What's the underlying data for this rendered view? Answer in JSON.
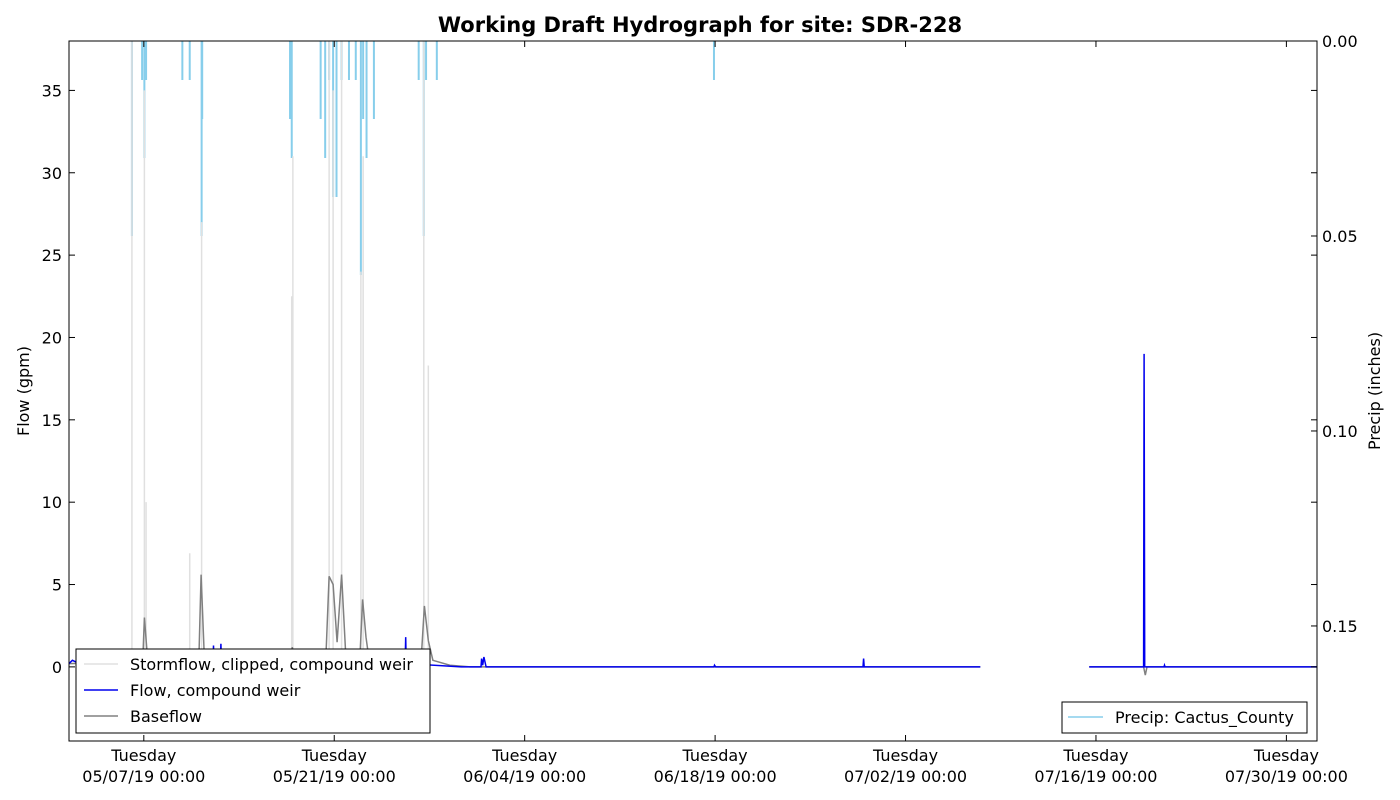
{
  "chart_data": {
    "type": "line",
    "title": "Working Draft Hydrograph for site: SDR-228",
    "ylabel": "Flow (gpm)",
    "y2label": "Precip (inches)",
    "xlabel": "",
    "ylim": [
      -4.5,
      38
    ],
    "y2lim": [
      0.0,
      0.1795
    ],
    "y2_inverted": true,
    "xlim": [
      "2019-05-01T12:00",
      "2019-08-01T06:00"
    ],
    "yticks": [
      "0",
      "5",
      "10",
      "15",
      "20",
      "25",
      "30",
      "35"
    ],
    "y2ticks": [
      "0.00",
      "0.05",
      "0.10",
      "0.15"
    ],
    "xticks": [
      {
        "date": "2019-05-07",
        "label_day": "Tuesday",
        "label_date": "05/07/19 00:00"
      },
      {
        "date": "2019-05-21",
        "label_day": "Tuesday",
        "label_date": "05/21/19 00:00"
      },
      {
        "date": "2019-06-04",
        "label_day": "Tuesday",
        "label_date": "06/04/19 00:00"
      },
      {
        "date": "2019-06-18",
        "label_day": "Tuesday",
        "label_date": "06/18/19 00:00"
      },
      {
        "date": "2019-07-02",
        "label_day": "Tuesday",
        "label_date": "07/02/19 00:00"
      },
      {
        "date": "2019-07-16",
        "label_day": "Tuesday",
        "label_date": "07/16/19 00:00"
      },
      {
        "date": "2019-07-30",
        "label_day": "Tuesday",
        "label_date": "07/30/19 00:00"
      }
    ],
    "legend_left": {
      "placement": "bottom-left",
      "entries": [
        {
          "label": "Stormflow, clipped, compound weir",
          "color": "#e0e0e0"
        },
        {
          "label": "Flow, compound weir",
          "color": "#0000ee"
        },
        {
          "label": "Baseflow",
          "color": "#808080"
        }
      ]
    },
    "legend_right": {
      "placement": "bottom-right",
      "entries": [
        {
          "label": "Precip: Cactus_County",
          "color": "#87ceeb"
        }
      ]
    },
    "series": [
      {
        "name": "Precip: Cactus_County",
        "axis": "right",
        "kind": "bars",
        "color": "#87ceeb",
        "points": [
          {
            "x": "2019-05-06T03:00",
            "y": 0.05
          },
          {
            "x": "2019-05-06T21:00",
            "y": 0.01
          },
          {
            "x": "2019-05-07T01:00",
            "y": 0.03
          },
          {
            "x": "2019-05-07T04:00",
            "y": 0.01
          },
          {
            "x": "2019-05-09T20:00",
            "y": 0.01
          },
          {
            "x": "2019-05-10T09:00",
            "y": 0.01
          },
          {
            "x": "2019-05-11T06:00",
            "y": 0.05
          },
          {
            "x": "2019-05-11T07:00",
            "y": 0.02
          },
          {
            "x": "2019-05-17T18:00",
            "y": 0.02
          },
          {
            "x": "2019-05-17T21:00",
            "y": 0.03
          },
          {
            "x": "2019-05-20T00:00",
            "y": 0.02
          },
          {
            "x": "2019-05-20T08:00",
            "y": 0.03
          },
          {
            "x": "2019-05-20T15:00",
            "y": 0.01
          },
          {
            "x": "2019-05-20T22:00",
            "y": 0.04
          },
          {
            "x": "2019-05-21T04:00",
            "y": 0.04
          },
          {
            "x": "2019-05-21T13:00",
            "y": 0.01
          },
          {
            "x": "2019-05-22T02:00",
            "y": 0.01
          },
          {
            "x": "2019-05-22T14:00",
            "y": 0.01
          },
          {
            "x": "2019-05-22T23:00",
            "y": 0.06
          },
          {
            "x": "2019-05-23T03:00",
            "y": 0.02
          },
          {
            "x": "2019-05-23T09:00",
            "y": 0.03
          },
          {
            "x": "2019-05-23T22:00",
            "y": 0.02
          },
          {
            "x": "2019-05-27T05:00",
            "y": 0.01
          },
          {
            "x": "2019-05-27T14:00",
            "y": 0.05
          },
          {
            "x": "2019-05-27T18:00",
            "y": 0.01
          },
          {
            "x": "2019-05-28T13:00",
            "y": 0.01
          },
          {
            "x": "2019-06-17T22:00",
            "y": 0.01
          }
        ]
      },
      {
        "name": "Stormflow, clipped, compound weir",
        "axis": "left",
        "kind": "spikes",
        "color": "#e0e0e0",
        "points": [
          {
            "x": "2019-05-06T03:00",
            "y": 38
          },
          {
            "x": "2019-05-07T01:00",
            "y": 35
          },
          {
            "x": "2019-05-07T04:00",
            "y": 10
          },
          {
            "x": "2019-05-10T09:00",
            "y": 6.9
          },
          {
            "x": "2019-05-11T06:00",
            "y": 27
          },
          {
            "x": "2019-05-17T21:00",
            "y": 22.5
          },
          {
            "x": "2019-05-17T23:00",
            "y": 31
          },
          {
            "x": "2019-05-20T15:00",
            "y": 38
          },
          {
            "x": "2019-05-20T22:00",
            "y": 35
          },
          {
            "x": "2019-05-21T13:00",
            "y": 38
          },
          {
            "x": "2019-05-22T23:00",
            "y": 24
          },
          {
            "x": "2019-05-23T03:00",
            "y": 31
          },
          {
            "x": "2019-05-27T14:00",
            "y": 38
          },
          {
            "x": "2019-05-27T22:00",
            "y": 18.3
          }
        ]
      },
      {
        "name": "Baseflow",
        "axis": "left",
        "kind": "line",
        "color": "#808080",
        "segments": [
          [
            {
              "x": "2019-05-01T12:00",
              "y": 0.2
            },
            {
              "x": "2019-05-06T22:00",
              "y": 0.3
            },
            {
              "x": "2019-05-07T01:00",
              "y": 3.0
            },
            {
              "x": "2019-05-07T07:00",
              "y": 0.3
            },
            {
              "x": "2019-05-11T01:00",
              "y": 0.3
            },
            {
              "x": "2019-05-11T05:00",
              "y": 5.6
            },
            {
              "x": "2019-05-11T11:00",
              "y": 0.3
            },
            {
              "x": "2019-05-17T19:00",
              "y": 0.3
            },
            {
              "x": "2019-05-17T22:00",
              "y": 1.2
            },
            {
              "x": "2019-05-18T02:00",
              "y": 0.3
            },
            {
              "x": "2019-05-20T09:00",
              "y": 0.3
            },
            {
              "x": "2019-05-20T15:00",
              "y": 5.5
            },
            {
              "x": "2019-05-20T22:00",
              "y": 5.0
            },
            {
              "x": "2019-05-21T05:00",
              "y": 1.5
            },
            {
              "x": "2019-05-21T13:00",
              "y": 5.6
            },
            {
              "x": "2019-05-21T21:00",
              "y": 0.3
            },
            {
              "x": "2019-05-22T21:00",
              "y": 0.3
            },
            {
              "x": "2019-05-23T02:00",
              "y": 4.1
            },
            {
              "x": "2019-05-23T08:00",
              "y": 1.8
            },
            {
              "x": "2019-05-23T14:00",
              "y": 0.3
            },
            {
              "x": "2019-05-27T09:00",
              "y": 0.3
            },
            {
              "x": "2019-05-27T15:00",
              "y": 3.7
            },
            {
              "x": "2019-05-27T22:00",
              "y": 1.6
            },
            {
              "x": "2019-05-28T06:00",
              "y": 0.4
            },
            {
              "x": "2019-05-29T12:00",
              "y": 0.1
            },
            {
              "x": "2019-05-31T00:00",
              "y": 0.0
            },
            {
              "x": "2019-07-07T12:00",
              "y": 0.0
            }
          ],
          [
            {
              "x": "2019-07-15T12:00",
              "y": 0.0
            },
            {
              "x": "2019-07-19T12:00",
              "y": 0.0
            },
            {
              "x": "2019-07-19T15:00",
              "y": -0.5
            },
            {
              "x": "2019-07-19T18:00",
              "y": 0.0
            },
            {
              "x": "2019-08-01T06:00",
              "y": 0.0
            }
          ]
        ]
      },
      {
        "name": "Flow, compound weir",
        "axis": "left",
        "kind": "line",
        "color": "#0000ee",
        "segments": [
          [
            {
              "x": "2019-05-01T12:00",
              "y": 0.2
            },
            {
              "x": "2019-05-01T18:00",
              "y": 0.4
            },
            {
              "x": "2019-05-02T06:00",
              "y": 0.2
            },
            {
              "x": "2019-05-08T20:00",
              "y": 0.2
            },
            {
              "x": "2019-05-08T21:00",
              "y": 1.0
            },
            {
              "x": "2019-05-08T22:00",
              "y": 0.2
            },
            {
              "x": "2019-05-12T02:00",
              "y": 0.2
            },
            {
              "x": "2019-05-12T03:00",
              "y": 1.3
            },
            {
              "x": "2019-05-12T04:00",
              "y": 0.2
            },
            {
              "x": "2019-05-12T15:00",
              "y": 0.2
            },
            {
              "x": "2019-05-12T16:00",
              "y": 1.4
            },
            {
              "x": "2019-05-12T17:00",
              "y": 0.2
            },
            {
              "x": "2019-05-26T05:00",
              "y": 0.2
            },
            {
              "x": "2019-05-26T06:00",
              "y": 1.8
            },
            {
              "x": "2019-05-26T07:00",
              "y": 0.2
            },
            {
              "x": "2019-05-30T08:00",
              "y": 0.0
            },
            {
              "x": "2019-05-31T19:00",
              "y": 0.0
            },
            {
              "x": "2019-05-31T20:00",
              "y": 0.5
            },
            {
              "x": "2019-05-31T22:00",
              "y": 0.1
            },
            {
              "x": "2019-06-01T00:00",
              "y": 0.6
            },
            {
              "x": "2019-06-01T04:00",
              "y": 0.0
            },
            {
              "x": "2019-06-17T22:00",
              "y": 0.0
            },
            {
              "x": "2019-06-17T23:00",
              "y": 0.1
            },
            {
              "x": "2019-06-18T01:00",
              "y": 0.0
            },
            {
              "x": "2019-06-28T21:00",
              "y": 0.0
            },
            {
              "x": "2019-06-28T22:00",
              "y": 0.5
            },
            {
              "x": "2019-06-28T23:00",
              "y": 0.0
            },
            {
              "x": "2019-07-07T12:00",
              "y": 0.0
            }
          ],
          [
            {
              "x": "2019-07-15T12:00",
              "y": 0.0
            },
            {
              "x": "2019-07-19T12:00",
              "y": 0.0
            },
            {
              "x": "2019-07-19T13:00",
              "y": 19.0
            },
            {
              "x": "2019-07-19T14:00",
              "y": 0.0
            },
            {
              "x": "2019-07-21T00:00",
              "y": 0.0
            },
            {
              "x": "2019-07-21T01:00",
              "y": 0.1
            },
            {
              "x": "2019-07-21T02:00",
              "y": 0.0
            },
            {
              "x": "2019-08-01T06:00",
              "y": 0.0
            }
          ]
        ]
      }
    ]
  }
}
